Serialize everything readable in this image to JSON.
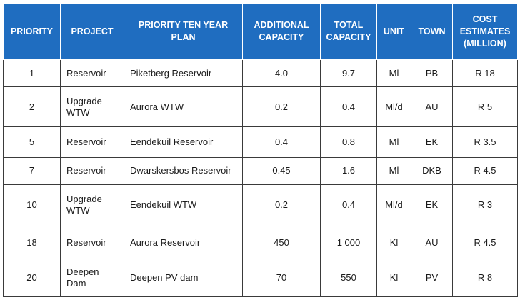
{
  "table": {
    "headers": [
      "PRIORITY",
      "PROJECT",
      "PRIORITY TEN YEAR PLAN",
      "ADDITIONAL CAPACITY",
      "TOTAL CAPACITY",
      "UNIT",
      "TOWN",
      "COST ESTIMATES (MILLION)"
    ],
    "rows": [
      [
        "1",
        "Reservoir",
        "Piketberg Reservoir",
        "4.0",
        "9.7",
        "Ml",
        "PB",
        "R 18"
      ],
      [
        "2",
        "Upgrade WTW",
        "Aurora WTW",
        "0.2",
        "0.4",
        "Ml/d",
        "AU",
        "R 5"
      ],
      [
        "5",
        "Reservoir",
        "Eendekuil Reservoir",
        "0.4",
        "0.8",
        "Ml",
        "EK",
        "R 3.5"
      ],
      [
        "7",
        "Reservoir",
        "Dwarskersbos Reservoir",
        "0.45",
        "1.6",
        "Ml",
        "DKB",
        "R 4.5"
      ],
      [
        "10",
        "Upgrade WTW",
        "Eendekuil WTW",
        "0.2",
        "0.4",
        "Ml/d",
        "EK",
        "R 3"
      ],
      [
        "18",
        "Reservoir",
        "Aurora Reservoir",
        "450",
        "1 000",
        "Kl",
        "AU",
        "R 4.5"
      ],
      [
        "20",
        "Deepen Dam",
        "Deepen PV dam",
        "70",
        "550",
        "Kl",
        "PV",
        "R 8"
      ]
    ]
  }
}
